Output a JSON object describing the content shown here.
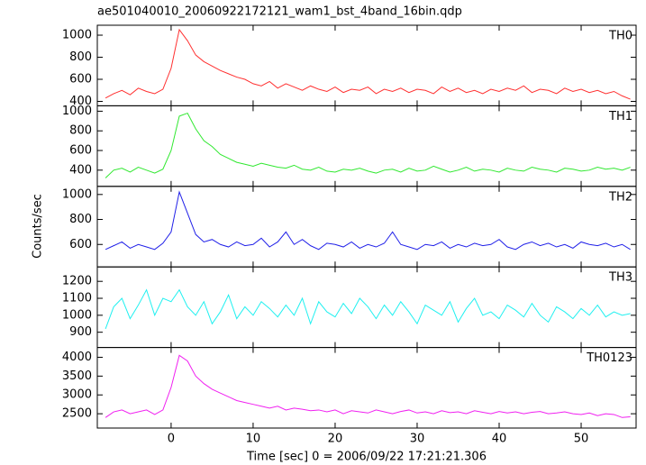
{
  "title": "ae501040010_20060922172121_wam1_bst_4band_16bin.qdp",
  "y_label": "Counts/sec",
  "x_label": "Time [sec] 0 = 2006/09/22 17:21:21.306",
  "chart_data": [
    {
      "type": "line",
      "xlim": [
        -9,
        56.7
      ],
      "ylim": [
        360,
        1090
      ],
      "yticks": [
        400,
        600,
        800,
        1000
      ],
      "x": [
        -8,
        -7,
        -6,
        -5,
        -4,
        -3,
        -2,
        -1,
        0,
        1,
        2,
        3,
        4,
        5,
        6,
        7,
        8,
        9,
        10,
        11,
        12,
        13,
        14,
        15,
        16,
        17,
        18,
        19,
        20,
        21,
        22,
        23,
        24,
        25,
        26,
        27,
        28,
        29,
        30,
        31,
        32,
        33,
        34,
        35,
        36,
        37,
        38,
        39,
        40,
        41,
        42,
        43,
        44,
        45,
        46,
        47,
        48,
        49,
        50,
        51,
        52,
        53,
        54,
        55,
        56
      ],
      "series": [
        {
          "name": "TH0",
          "color": "#ff3030",
          "values": [
            430,
            470,
            500,
            460,
            520,
            490,
            470,
            510,
            700,
            1050,
            950,
            820,
            760,
            720,
            680,
            650,
            620,
            600,
            560,
            540,
            580,
            520,
            560,
            530,
            500,
            540,
            510,
            490,
            530,
            480,
            510,
            500,
            530,
            470,
            510,
            490,
            520,
            480,
            510,
            500,
            470,
            530,
            490,
            520,
            480,
            500,
            470,
            510,
            490,
            520,
            500,
            540,
            480,
            510,
            500,
            470,
            520,
            490,
            510,
            480,
            500,
            470,
            490,
            450,
            420
          ]
        }
      ]
    },
    {
      "type": "line",
      "xlim": [
        -9,
        56.7
      ],
      "ylim": [
        235,
        1055
      ],
      "yticks": [
        400,
        600,
        800,
        1000
      ],
      "x": [
        -8,
        -7,
        -6,
        -5,
        -4,
        -3,
        -2,
        -1,
        0,
        1,
        2,
        3,
        4,
        5,
        6,
        7,
        8,
        9,
        10,
        11,
        12,
        13,
        14,
        15,
        16,
        17,
        18,
        19,
        20,
        21,
        22,
        23,
        24,
        25,
        26,
        27,
        28,
        29,
        30,
        31,
        32,
        33,
        34,
        35,
        36,
        37,
        38,
        39,
        40,
        41,
        42,
        43,
        44,
        45,
        46,
        47,
        48,
        49,
        50,
        51,
        52,
        53,
        54,
        55,
        56
      ],
      "series": [
        {
          "name": "TH1",
          "color": "#30e830",
          "values": [
            320,
            400,
            420,
            380,
            430,
            400,
            370,
            410,
            600,
            950,
            980,
            820,
            700,
            640,
            560,
            520,
            480,
            460,
            440,
            470,
            450,
            430,
            420,
            450,
            410,
            400,
            430,
            390,
            380,
            410,
            400,
            420,
            390,
            370,
            400,
            410,
            380,
            420,
            390,
            400,
            440,
            410,
            380,
            400,
            430,
            390,
            410,
            400,
            380,
            420,
            400,
            390,
            430,
            410,
            400,
            380,
            420,
            410,
            390,
            400,
            430,
            410,
            420,
            400,
            430
          ]
        }
      ]
    },
    {
      "type": "line",
      "xlim": [
        -9,
        56.7
      ],
      "ylim": [
        420,
        1065
      ],
      "yticks": [
        600,
        800,
        1000
      ],
      "x": [
        -8,
        -7,
        -6,
        -5,
        -4,
        -3,
        -2,
        -1,
        0,
        1,
        2,
        3,
        4,
        5,
        6,
        7,
        8,
        9,
        10,
        11,
        12,
        13,
        14,
        15,
        16,
        17,
        18,
        19,
        20,
        21,
        22,
        23,
        24,
        25,
        26,
        27,
        28,
        29,
        30,
        31,
        32,
        33,
        34,
        35,
        36,
        37,
        38,
        39,
        40,
        41,
        42,
        43,
        44,
        45,
        46,
        47,
        48,
        49,
        50,
        51,
        52,
        53,
        54,
        55,
        56
      ],
      "series": [
        {
          "name": "TH2",
          "color": "#2020e8",
          "values": [
            560,
            590,
            620,
            570,
            600,
            580,
            560,
            610,
            700,
            1020,
            850,
            680,
            620,
            640,
            600,
            580,
            620,
            590,
            600,
            650,
            580,
            620,
            700,
            600,
            640,
            590,
            560,
            610,
            600,
            580,
            620,
            570,
            600,
            580,
            610,
            700,
            600,
            580,
            560,
            600,
            590,
            620,
            570,
            600,
            580,
            610,
            590,
            600,
            640,
            580,
            560,
            600,
            620,
            590,
            610,
            580,
            600,
            570,
            620,
            600,
            590,
            610,
            580,
            600,
            560
          ]
        }
      ]
    },
    {
      "type": "line",
      "xlim": [
        -9,
        56.7
      ],
      "ylim": [
        810,
        1285
      ],
      "yticks": [
        900,
        1000,
        1100,
        1200
      ],
      "x": [
        -8,
        -7,
        -6,
        -5,
        -4,
        -3,
        -2,
        -1,
        0,
        1,
        2,
        3,
        4,
        5,
        6,
        7,
        8,
        9,
        10,
        11,
        12,
        13,
        14,
        15,
        16,
        17,
        18,
        19,
        20,
        21,
        22,
        23,
        24,
        25,
        26,
        27,
        28,
        29,
        30,
        31,
        32,
        33,
        34,
        35,
        36,
        37,
        38,
        39,
        40,
        41,
        42,
        43,
        44,
        45,
        46,
        47,
        48,
        49,
        50,
        51,
        52,
        53,
        54,
        55,
        56
      ],
      "series": [
        {
          "name": "TH3",
          "color": "#20f0f0",
          "values": [
            920,
            1050,
            1100,
            980,
            1060,
            1150,
            1000,
            1100,
            1080,
            1150,
            1050,
            1000,
            1080,
            950,
            1020,
            1120,
            980,
            1050,
            1000,
            1080,
            1040,
            990,
            1060,
            1000,
            1100,
            950,
            1080,
            1020,
            990,
            1070,
            1010,
            1100,
            1050,
            980,
            1060,
            1000,
            1080,
            1020,
            950,
            1060,
            1030,
            1000,
            1080,
            960,
            1040,
            1100,
            1000,
            1020,
            980,
            1060,
            1030,
            990,
            1070,
            1000,
            960,
            1050,
            1020,
            980,
            1040,
            1000,
            1060,
            990,
            1020,
            1000,
            1010
          ]
        }
      ]
    },
    {
      "type": "line",
      "xlim": [
        -9,
        56.7
      ],
      "ylim": [
        2120,
        4260
      ],
      "yticks": [
        2500,
        3000,
        3500,
        4000
      ],
      "xticks": [
        0,
        10,
        20,
        30,
        40,
        50
      ],
      "x": [
        -8,
        -7,
        -6,
        -5,
        -4,
        -3,
        -2,
        -1,
        0,
        1,
        2,
        3,
        4,
        5,
        6,
        7,
        8,
        9,
        10,
        11,
        12,
        13,
        14,
        15,
        16,
        17,
        18,
        19,
        20,
        21,
        22,
        23,
        24,
        25,
        26,
        27,
        28,
        29,
        30,
        31,
        32,
        33,
        34,
        35,
        36,
        37,
        38,
        39,
        40,
        41,
        42,
        43,
        44,
        45,
        46,
        47,
        48,
        49,
        50,
        51,
        52,
        53,
        54,
        55,
        56
      ],
      "series": [
        {
          "name": "TH0123",
          "color": "#f020f0",
          "values": [
            2400,
            2550,
            2600,
            2500,
            2550,
            2600,
            2480,
            2600,
            3200,
            4050,
            3900,
            3500,
            3300,
            3150,
            3050,
            2950,
            2850,
            2800,
            2750,
            2700,
            2650,
            2700,
            2600,
            2650,
            2620,
            2580,
            2600,
            2550,
            2600,
            2500,
            2580,
            2550,
            2520,
            2600,
            2550,
            2500,
            2560,
            2600,
            2520,
            2550,
            2500,
            2580,
            2530,
            2550,
            2500,
            2580,
            2540,
            2500,
            2560,
            2520,
            2550,
            2500,
            2540,
            2560,
            2500,
            2520,
            2550,
            2500,
            2480,
            2520,
            2450,
            2500,
            2480,
            2400,
            2420
          ]
        }
      ]
    }
  ]
}
